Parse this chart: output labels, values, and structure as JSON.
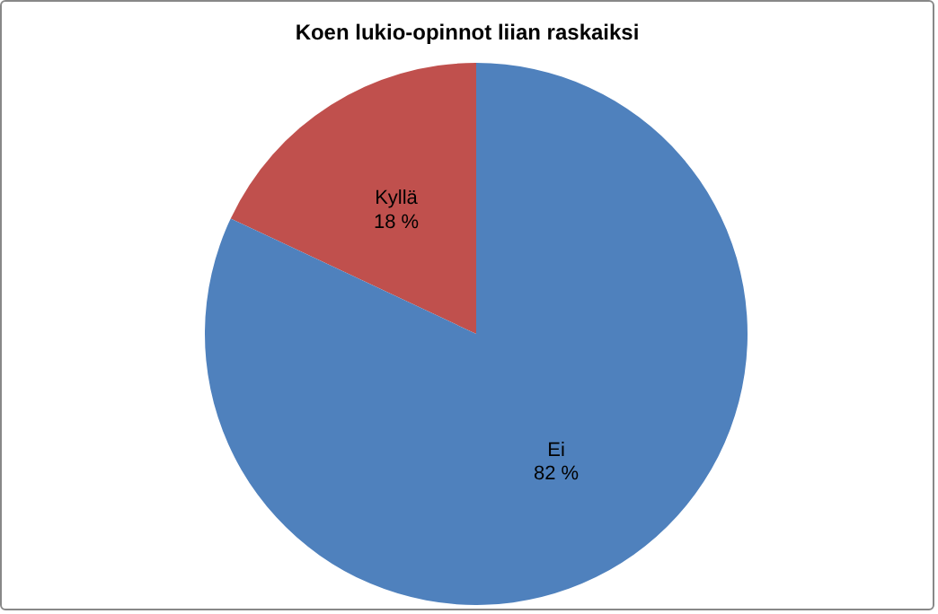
{
  "chart_data": {
    "type": "pie",
    "title": "Koen lukio-opinnot liian raskaiksi",
    "categories": [
      "Kyllä",
      "Ei"
    ],
    "values": [
      18,
      82
    ],
    "value_labels": [
      "18 %",
      "82 %"
    ],
    "colors": [
      "#c0504d",
      "#4f81bd"
    ],
    "legend": false
  }
}
